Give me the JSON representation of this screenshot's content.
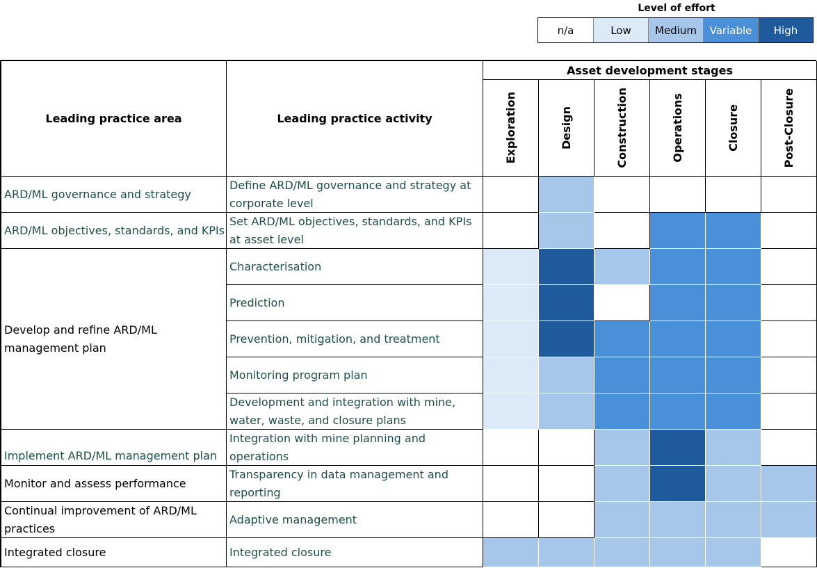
{
  "legend": {
    "title": "Level of effort",
    "items": [
      {
        "label": "n/a",
        "color": "#ffffff",
        "text": "#000000"
      },
      {
        "label": "Low",
        "color": "#dce9f6",
        "text": "#000000"
      },
      {
        "label": "Medium",
        "color": "#a7c7ea",
        "text": "#000000"
      },
      {
        "label": "Variable",
        "color": "#4a90d8",
        "text": "#ffffff"
      },
      {
        "label": "High",
        "color": "#1f5b9c",
        "text": "#ffffff"
      }
    ]
  },
  "table": {
    "area_header": "Leading practice area",
    "activity_header": "Leading practice activity",
    "stages_header": "Asset development stages",
    "stages": [
      "Exploration",
      "Design",
      "Construction",
      "Operations",
      "Closure",
      "Post-Closure"
    ],
    "rows": [
      {
        "activity": "Define ARD/ML governance and strategy at corporate level",
        "levels": [
          "n/a",
          "Medium",
          "n/a",
          "n/a",
          "n/a",
          "n/a"
        ]
      },
      {
        "activity": "Set ARD/ML objectives, standards, and KPIs at asset level",
        "levels": [
          "n/a",
          "Medium",
          "n/a",
          "Variable",
          "Variable",
          "n/a"
        ]
      },
      {
        "activity": "Characterisation",
        "levels": [
          "Low",
          "High",
          "Medium",
          "Variable",
          "Variable",
          "n/a"
        ]
      },
      {
        "activity": "Prediction",
        "levels": [
          "Low",
          "High",
          "n/a",
          "Variable",
          "Variable",
          "n/a"
        ]
      },
      {
        "activity": "Prevention, mitigation, and treatment",
        "levels": [
          "Low",
          "High",
          "Variable",
          "Variable",
          "Variable",
          "n/a"
        ]
      },
      {
        "activity": "Monitoring program plan",
        "levels": [
          "Low",
          "Medium",
          "Variable",
          "Variable",
          "Variable",
          "n/a"
        ]
      },
      {
        "activity": "Development and integration with mine, water, waste, and closure plans",
        "levels": [
          "Low",
          "Medium",
          "Variable",
          "Variable",
          "Variable",
          "n/a"
        ]
      },
      {
        "activity": "Integration with mine planning and operations",
        "levels": [
          "n/a",
          "n/a",
          "Medium",
          "High",
          "Medium",
          "n/a"
        ]
      },
      {
        "activity": "Transparency in data management and reporting",
        "levels": [
          "n/a",
          "n/a",
          "Medium",
          "High",
          "Medium",
          "Medium"
        ]
      },
      {
        "activity": "Adaptive management",
        "levels": [
          "n/a",
          "n/a",
          "Medium",
          "Medium",
          "Medium",
          "Medium"
        ]
      },
      {
        "activity": "Integrated closure",
        "levels": [
          "Medium",
          "Medium",
          "Medium",
          "Medium",
          "Medium",
          "n/a"
        ]
      }
    ],
    "areas": [
      {
        "label": "ARD/ML governance and strategy",
        "span": 1,
        "color": "#1d4f4a"
      },
      {
        "label": "ARD/ML objectives, standards, and KPIs",
        "span": 1,
        "color": "#1d4f4a"
      },
      {
        "label": "Develop and refine ARD/ML management plan",
        "span": 5,
        "color": "#000000"
      },
      {
        "label": "Implement ARD/ML management plan",
        "span": 1,
        "color": "#1d4f4a"
      },
      {
        "label": "Monitor and assess performance",
        "span": 1,
        "color": "#000000"
      },
      {
        "label": "Continual improvement of ARD/ML practices",
        "span": 1,
        "color": "#000000"
      },
      {
        "label": "Integrated closure",
        "span": 1,
        "color": "#000000"
      }
    ]
  }
}
